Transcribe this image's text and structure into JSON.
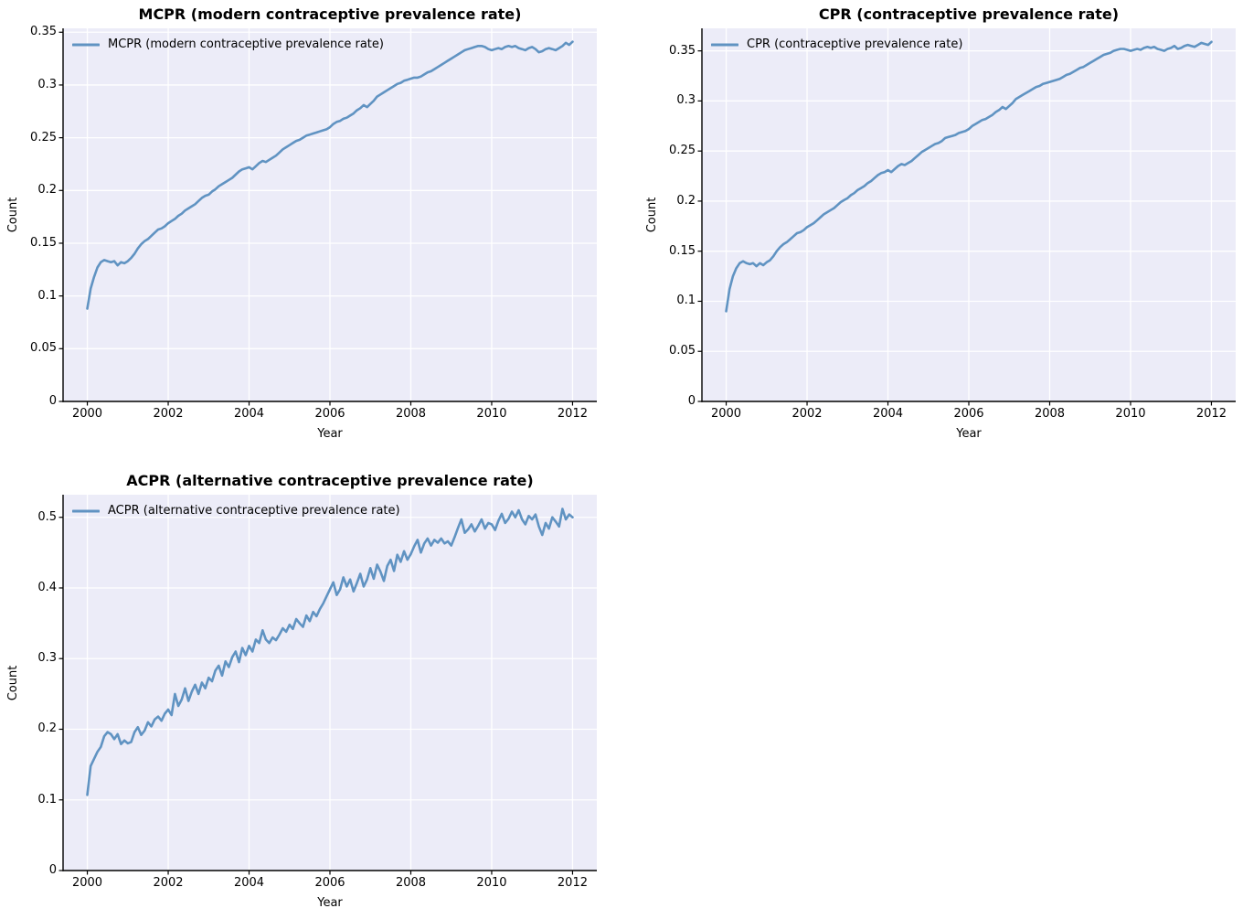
{
  "figure": {
    "background": "#ffffff",
    "axes_background": "#ececf8",
    "grid_color": "#ffffff",
    "spine_color": "#000000",
    "text_color": "#000000",
    "line_color": "#6093c2"
  },
  "chart_data": [
    {
      "type": "line",
      "title": "MCPR (modern contraceptive prevalence rate)",
      "xlabel": "Year",
      "ylabel": "Count",
      "legend_position": "upper left",
      "grid": true,
      "xlim": [
        1999.4,
        2012.6
      ],
      "ylim": [
        0,
        0.3537
      ],
      "xticks": [
        2000,
        2002,
        2004,
        2006,
        2008,
        2010,
        2012
      ],
      "xtick_labels": [
        "2000",
        "2002",
        "2004",
        "2006",
        "2008",
        "2010",
        "2012"
      ],
      "yticks": [
        0,
        0.05,
        0.1,
        0.15,
        0.2,
        0.25,
        0.3,
        0.35
      ],
      "ytick_labels": [
        "0",
        "0.05",
        "0.1",
        "0.15",
        "0.2",
        "0.25",
        "0.3",
        "0.35"
      ],
      "series": [
        {
          "name": "MCPR (modern contraceptive prevalence rate)",
          "x_start": 2000,
          "x_step": 0.0833333,
          "y": [
            0.088,
            0.107,
            0.118,
            0.127,
            0.132,
            0.134,
            0.133,
            0.132,
            0.133,
            0.129,
            0.132,
            0.131,
            0.133,
            0.136,
            0.14,
            0.145,
            0.149,
            0.152,
            0.154,
            0.157,
            0.16,
            0.163,
            0.164,
            0.166,
            0.169,
            0.171,
            0.173,
            0.176,
            0.178,
            0.181,
            0.183,
            0.185,
            0.187,
            0.19,
            0.193,
            0.195,
            0.196,
            0.199,
            0.201,
            0.204,
            0.206,
            0.208,
            0.21,
            0.212,
            0.215,
            0.218,
            0.22,
            0.221,
            0.222,
            0.22,
            0.223,
            0.226,
            0.228,
            0.227,
            0.229,
            0.231,
            0.233,
            0.236,
            0.239,
            0.241,
            0.243,
            0.245,
            0.247,
            0.248,
            0.25,
            0.252,
            0.253,
            0.254,
            0.255,
            0.256,
            0.257,
            0.258,
            0.26,
            0.263,
            0.265,
            0.266,
            0.268,
            0.269,
            0.271,
            0.273,
            0.276,
            0.278,
            0.281,
            0.279,
            0.282,
            0.285,
            0.289,
            0.291,
            0.293,
            0.295,
            0.297,
            0.299,
            0.301,
            0.302,
            0.304,
            0.305,
            0.306,
            0.307,
            0.307,
            0.308,
            0.31,
            0.312,
            0.313,
            0.315,
            0.317,
            0.319,
            0.321,
            0.323,
            0.325,
            0.327,
            0.329,
            0.331,
            0.333,
            0.334,
            0.335,
            0.336,
            0.337,
            0.337,
            0.336,
            0.334,
            0.333,
            0.334,
            0.335,
            0.334,
            0.336,
            0.337,
            0.336,
            0.337,
            0.335,
            0.334,
            0.333,
            0.335,
            0.336,
            0.334,
            0.331,
            0.332,
            0.334,
            0.335,
            0.334,
            0.333,
            0.335,
            0.337,
            0.34,
            0.338,
            0.341
          ]
        }
      ]
    },
    {
      "type": "line",
      "title": "CPR (contraceptive prevalence rate)",
      "xlabel": "Year",
      "ylabel": "Count",
      "legend_position": "upper left",
      "grid": true,
      "xlim": [
        1999.4,
        2012.6
      ],
      "ylim": [
        0,
        0.3725
      ],
      "xticks": [
        2000,
        2002,
        2004,
        2006,
        2008,
        2010,
        2012
      ],
      "xtick_labels": [
        "2000",
        "2002",
        "2004",
        "2006",
        "2008",
        "2010",
        "2012"
      ],
      "yticks": [
        0,
        0.05,
        0.1,
        0.15,
        0.2,
        0.25,
        0.3,
        0.35
      ],
      "ytick_labels": [
        "0",
        "0.05",
        "0.1",
        "0.15",
        "0.2",
        "0.25",
        "0.3",
        "0.35"
      ],
      "series": [
        {
          "name": "CPR (contraceptive prevalence rate)",
          "x_start": 2000,
          "x_step": 0.0833333,
          "y": [
            0.09,
            0.112,
            0.125,
            0.133,
            0.138,
            0.14,
            0.138,
            0.137,
            0.138,
            0.135,
            0.138,
            0.136,
            0.139,
            0.141,
            0.145,
            0.15,
            0.154,
            0.157,
            0.159,
            0.162,
            0.165,
            0.168,
            0.169,
            0.171,
            0.174,
            0.176,
            0.178,
            0.181,
            0.184,
            0.187,
            0.189,
            0.191,
            0.193,
            0.196,
            0.199,
            0.201,
            0.203,
            0.206,
            0.208,
            0.211,
            0.213,
            0.215,
            0.218,
            0.22,
            0.223,
            0.226,
            0.228,
            0.229,
            0.231,
            0.229,
            0.232,
            0.235,
            0.237,
            0.236,
            0.238,
            0.24,
            0.243,
            0.246,
            0.249,
            0.251,
            0.253,
            0.255,
            0.257,
            0.258,
            0.26,
            0.263,
            0.264,
            0.265,
            0.266,
            0.268,
            0.269,
            0.27,
            0.272,
            0.275,
            0.277,
            0.279,
            0.281,
            0.282,
            0.284,
            0.286,
            0.289,
            0.291,
            0.294,
            0.292,
            0.295,
            0.298,
            0.302,
            0.304,
            0.306,
            0.308,
            0.31,
            0.312,
            0.314,
            0.315,
            0.317,
            0.318,
            0.319,
            0.32,
            0.321,
            0.322,
            0.324,
            0.326,
            0.327,
            0.329,
            0.331,
            0.333,
            0.334,
            0.336,
            0.338,
            0.34,
            0.342,
            0.344,
            0.346,
            0.347,
            0.348,
            0.35,
            0.351,
            0.352,
            0.352,
            0.351,
            0.35,
            0.351,
            0.352,
            0.351,
            0.353,
            0.354,
            0.353,
            0.354,
            0.352,
            0.351,
            0.35,
            0.352,
            0.353,
            0.355,
            0.352,
            0.353,
            0.355,
            0.356,
            0.355,
            0.354,
            0.356,
            0.358,
            0.357,
            0.356,
            0.359
          ]
        }
      ]
    },
    {
      "type": "line",
      "title": "ACPR (alternative contraceptive prevalence rate)",
      "xlabel": "Year",
      "ylabel": "Count",
      "legend_position": "upper left",
      "grid": true,
      "xlim": [
        1999.4,
        2012.6
      ],
      "ylim": [
        0,
        0.532
      ],
      "xticks": [
        2000,
        2002,
        2004,
        2006,
        2008,
        2010,
        2012
      ],
      "xtick_labels": [
        "2000",
        "2002",
        "2004",
        "2006",
        "2008",
        "2010",
        "2012"
      ],
      "yticks": [
        0,
        0.1,
        0.2,
        0.3,
        0.4,
        0.5
      ],
      "ytick_labels": [
        "0",
        "0.1",
        "0.2",
        "0.3",
        "0.4",
        "0.5"
      ],
      "series": [
        {
          "name": "ACPR (alternative contraceptive prevalence rate)",
          "x_start": 2000,
          "x_step": 0.0833333,
          "y": [
            0.107,
            0.148,
            0.158,
            0.168,
            0.175,
            0.19,
            0.196,
            0.193,
            0.186,
            0.193,
            0.179,
            0.184,
            0.18,
            0.182,
            0.196,
            0.203,
            0.192,
            0.198,
            0.21,
            0.204,
            0.214,
            0.218,
            0.212,
            0.222,
            0.228,
            0.22,
            0.25,
            0.233,
            0.242,
            0.258,
            0.24,
            0.253,
            0.263,
            0.25,
            0.266,
            0.258,
            0.273,
            0.268,
            0.283,
            0.29,
            0.276,
            0.296,
            0.288,
            0.302,
            0.31,
            0.295,
            0.315,
            0.305,
            0.318,
            0.31,
            0.327,
            0.322,
            0.34,
            0.327,
            0.322,
            0.33,
            0.326,
            0.334,
            0.343,
            0.338,
            0.348,
            0.342,
            0.356,
            0.35,
            0.345,
            0.361,
            0.353,
            0.366,
            0.36,
            0.37,
            0.378,
            0.388,
            0.398,
            0.408,
            0.39,
            0.398,
            0.415,
            0.402,
            0.412,
            0.395,
            0.407,
            0.42,
            0.402,
            0.412,
            0.428,
            0.413,
            0.433,
            0.423,
            0.41,
            0.431,
            0.44,
            0.424,
            0.447,
            0.437,
            0.452,
            0.44,
            0.448,
            0.459,
            0.468,
            0.45,
            0.463,
            0.47,
            0.46,
            0.468,
            0.464,
            0.47,
            0.463,
            0.466,
            0.46,
            0.472,
            0.485,
            0.497,
            0.478,
            0.483,
            0.49,
            0.48,
            0.488,
            0.497,
            0.484,
            0.492,
            0.49,
            0.482,
            0.495,
            0.505,
            0.492,
            0.498,
            0.508,
            0.5,
            0.51,
            0.497,
            0.49,
            0.502,
            0.497,
            0.504,
            0.487,
            0.475,
            0.492,
            0.484,
            0.5,
            0.494,
            0.487,
            0.512,
            0.497,
            0.504,
            0.5
          ]
        }
      ]
    }
  ]
}
